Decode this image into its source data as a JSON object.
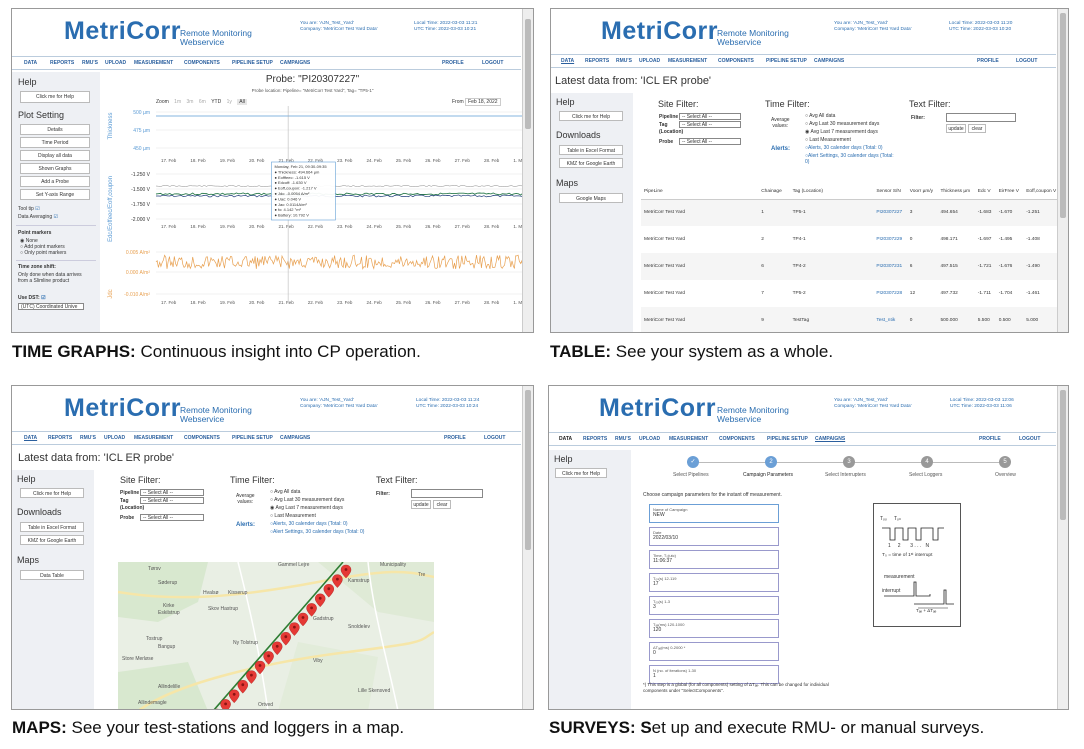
{
  "brand": {
    "logo": "MetriCorr",
    "subtitle_line1": "Remote Monitoring",
    "subtitle_line2": "Webservice"
  },
  "captions": [
    {
      "bold": "TIME GRAPHS:",
      "text": " Continuous insight into CP operation."
    },
    {
      "bold": "TABLE:",
      "text": " See your system as a whole."
    },
    {
      "bold": "MAPS:",
      "text": " See your test-stations and loggers in a map."
    },
    {
      "bold": "SURVEYS: S",
      "text": "et up and execute RMU- or manual surveys."
    }
  ],
  "nav": {
    "items": [
      "DATA",
      "REPORTS",
      "RMU's",
      "UPLOAD",
      "MEASUREMENT",
      "COMPONENTS",
      "PIPELINE SETUP",
      "CAMPAIGNS"
    ],
    "profile": "PROFILE",
    "logout": "LOGOUT"
  },
  "user": {
    "you_are": "You are: 'AJN_Test_Yard'",
    "company": "Company: 'MetriCorr Test Yard Data'"
  },
  "panels": {
    "timegraph": {
      "local": "Local Time: 2022-03-03 11:21",
      "utc": "UTC Time: 2022-03-03 10:21",
      "title": "Probe: \"PI20307227\"",
      "subtitle": "Probe location: Pipeline= \"MetriCorr Test Yard\", Tag= \"TP5-1\"",
      "zoom": "Zoom",
      "zoom_opts": [
        "1m",
        "3m",
        "6m",
        "YTD",
        "1y",
        "All"
      ],
      "from": "From",
      "from_val": "Feb 18, 2022",
      "side": {
        "help": "Help",
        "help_btn": "Click me for Help",
        "plot_setting": "Plot Setting",
        "buttons": [
          "Details",
          "Time Period",
          "Display all data",
          "Shown Graphs",
          "Add a Probe",
          "Set Y-axis Range"
        ],
        "tooltip": "Tool tip",
        "averaging": "Data Averaging",
        "point_markers": "Point markers",
        "pm_opts": [
          "None",
          "Add point markers",
          "Only point markers"
        ],
        "tz": "Time zone shift:",
        "tz_text1": "Only done when data arrives",
        "tz_text2": "from a Slimline product",
        "dst": "Use DST:",
        "tz_sel": "(UTC) Coordinated Unive"
      },
      "chart1": {
        "ylabel": "Thickness",
        "yticks": [
          "500 µm",
          "475 µm",
          "450 µm"
        ]
      },
      "chart2": {
        "ylabel": "Edc/Eoffeec/Eoff,coupon",
        "yticks": [
          "-1.250 V",
          "-1.500 V",
          "-1.750 V",
          "-2.000 V"
        ]
      },
      "chart3": {
        "ylabel": "Jdc",
        "yticks": [
          "0.005 A/m²",
          "0.000 A/m²",
          "-0.010 A/m²"
        ]
      },
      "xticks": [
        "17. Feb",
        "18. Feb",
        "19. Feb",
        "20. Feb",
        "21. Feb",
        "22. Feb",
        "23. Feb",
        "24. Feb",
        "25. Feb",
        "26. Feb",
        "27. Feb",
        "28. Feb",
        "1. M"
      ],
      "tooltip_lines": [
        "Monday, Feb 21, 09:30-09:35",
        "● Thickness: 494.664 µm",
        "● Eofffeec: -1.615 V",
        "● Edcoff: -1.630 V",
        "● Eoff,coupon: -1.217 V",
        "● Jdc: -0.0054 A/m²",
        "● Uac: 0.046 V",
        "● Jac: 0.0114A/m²",
        "● fo: 4.142 °m²",
        "● Battery: 10.792 V"
      ]
    },
    "table": {
      "local": "Local Time: 2022-03-03 11:20",
      "utc": "UTC Time: 2022-03-03 10:20",
      "latest": "Latest data from: 'ICL ER probe'",
      "help": "Help",
      "help_btn": "Click me for Help",
      "downloads": "Downloads",
      "dl_btns": [
        "Table in Excel Format",
        "KMZ for Google Earth"
      ],
      "maps": "Maps",
      "maps_btn": "Google Maps",
      "site_filter": "Site Filter:",
      "pipeline": "Pipeline",
      "tag": "Tag",
      "location": "(Location)",
      "probe": "Probe",
      "select_all": "-- Select All --",
      "time_filter": "Time Filter:",
      "average": "Average",
      "values": "values:",
      "avg_opts": [
        "Avg All data",
        "Avg Last 30 measurement days",
        "Avg Last 7 measurement days",
        "Last Measurement"
      ],
      "alerts": "Alerts:",
      "alert1": "Alerts, 30 calender days (Total: 0)",
      "alert2": "Alert Settings, 30 calender days (Total:",
      "alert3": "0)",
      "text_filter": "Text Filter:",
      "filter": "Filter:",
      "update": "update",
      "clear": "clear",
      "columns": [
        "PipeLine",
        "Chainage",
        "Tag (Location)",
        "Sensor S/N",
        "Voorr µm/y",
        "Thickness µm",
        "Edc V",
        "EirFree V",
        "Eoff,coupon V"
      ],
      "rows": [
        [
          "MetriCorr Test Yard",
          "1",
          "TP5-1",
          "PI20307227",
          "3",
          "494.654",
          "-1.683",
          "-1.670",
          "-1.251"
        ],
        [
          "MetriCorr Test Yard",
          "2",
          "TP4-1",
          "PI20307229",
          "0",
          "498.171",
          "-1.697",
          "-1.495",
          "-1.408"
        ],
        [
          "MetriCorr Test Yard",
          "6",
          "TP4-2",
          "PI20307231",
          "6",
          "497.515",
          "-1.721",
          "-1.676",
          "-1.490"
        ],
        [
          "MetriCorr Test Yard",
          "7",
          "TP5-2",
          "PI20307228",
          "12",
          "497.732",
          "-1.711",
          "-1.704",
          "-1.461"
        ],
        [
          "MetriCorr Test Yard",
          "9",
          "TestTag",
          "Test_ntik",
          "0",
          "500.000",
          "5.500",
          "0.500",
          "5.000"
        ]
      ]
    },
    "maps": {
      "local": "Local Time: 2022-03-03 11:24",
      "utc": "UTC Time: 2022-03-03 10:24",
      "latest": "Latest data from: 'ICL ER probe'",
      "help": "Help",
      "help_btn": "Click me for Help",
      "downloads": "Downloads",
      "dl_btns": [
        "Table in Excel Format",
        "KMZ for Google Earth"
      ],
      "maps": "Maps",
      "maps_btn": "Data Table",
      "site_filter": "Site Filter:",
      "pipeline": "Pipeline",
      "tag": "Tag",
      "location": "(Location)",
      "probe": "Probe",
      "select_all": "-- Select All --",
      "time_filter": "Time Filter:",
      "average": "Average",
      "values": "values:",
      "avg_opts": [
        "Avg All data",
        "Avg Last 30 measurement days",
        "Avg Last 7 measurement days",
        "Last Measurement"
      ],
      "alerts": "Alerts:",
      "alert1": "Alerts, 30 calender days (Total: 0)",
      "alert2": "Alert Settings, 30 calender days (Total: 0)",
      "text_filter": "Text Filter:",
      "filter": "Filter:",
      "update": "update",
      "clear": "clear",
      "places": [
        "Tørsv",
        "Gammel Lejre",
        "Municipality",
        "Tre",
        "Søderup",
        "Kamstrup",
        "Hvalsø",
        "Kisserup",
        "Kirke",
        "Eskilstrup",
        "Skov Hastrup",
        "Gadstrup",
        "Snoldelev",
        "Tostrup",
        "Bangup",
        "Ny Tolstrup",
        "Store Merløse",
        "Viby",
        "Allindelille",
        "Lille Skensved",
        "Allindemagle",
        "Ortved"
      ]
    },
    "surveys": {
      "local": "Local Time: 2022-03-03 12:06",
      "utc": "UTC Time: 2022-03-03 11:06",
      "help": "Help",
      "help_btn": "Click me for Help",
      "steps": [
        "Select Pipelines",
        "Campaign Parameters",
        "Select Interrupters",
        "Select Loggers",
        "Overview"
      ],
      "intro": "Choose campaign parameters for the instant off measurement.",
      "fields": [
        {
          "label": "Name of Campaign",
          "value": "NEW"
        },
        {
          "label": "Date",
          "value": "2022/03/10"
        },
        {
          "label": "Time, T₀(utc)",
          "value": "11:06:37"
        },
        {
          "label": "Tₒₙ(s) 12-119",
          "value": "17"
        },
        {
          "label": "Tₒₒ(s) 1-3",
          "value": "3"
        },
        {
          "label": "Tₐₑ(ms) 120-1000",
          "value": "120"
        },
        {
          "label": "ΔTₐₑ(ms) 0-2000 *",
          "value": "0"
        },
        {
          "label": "N (no. of iterations) 1-30",
          "value": "1"
        }
      ],
      "footnote1": "*) This step is a global (for all components) setting of ΔTₐₑ. This can be changed for individual",
      "footnote2": "components under \"SelectComponents\".",
      "diagram": {
        "t_off": "Tₒₒ",
        "t_on": "Tₒₙ",
        "nums": "1     2       3 . . .   N",
        "t0": "T₀ = time of 1ˢᵗ interrupt",
        "measurement": "measurement",
        "interrupt": "interrupt",
        "t_eq": "Tₐₑ + ΔTₐₑ"
      }
    }
  }
}
